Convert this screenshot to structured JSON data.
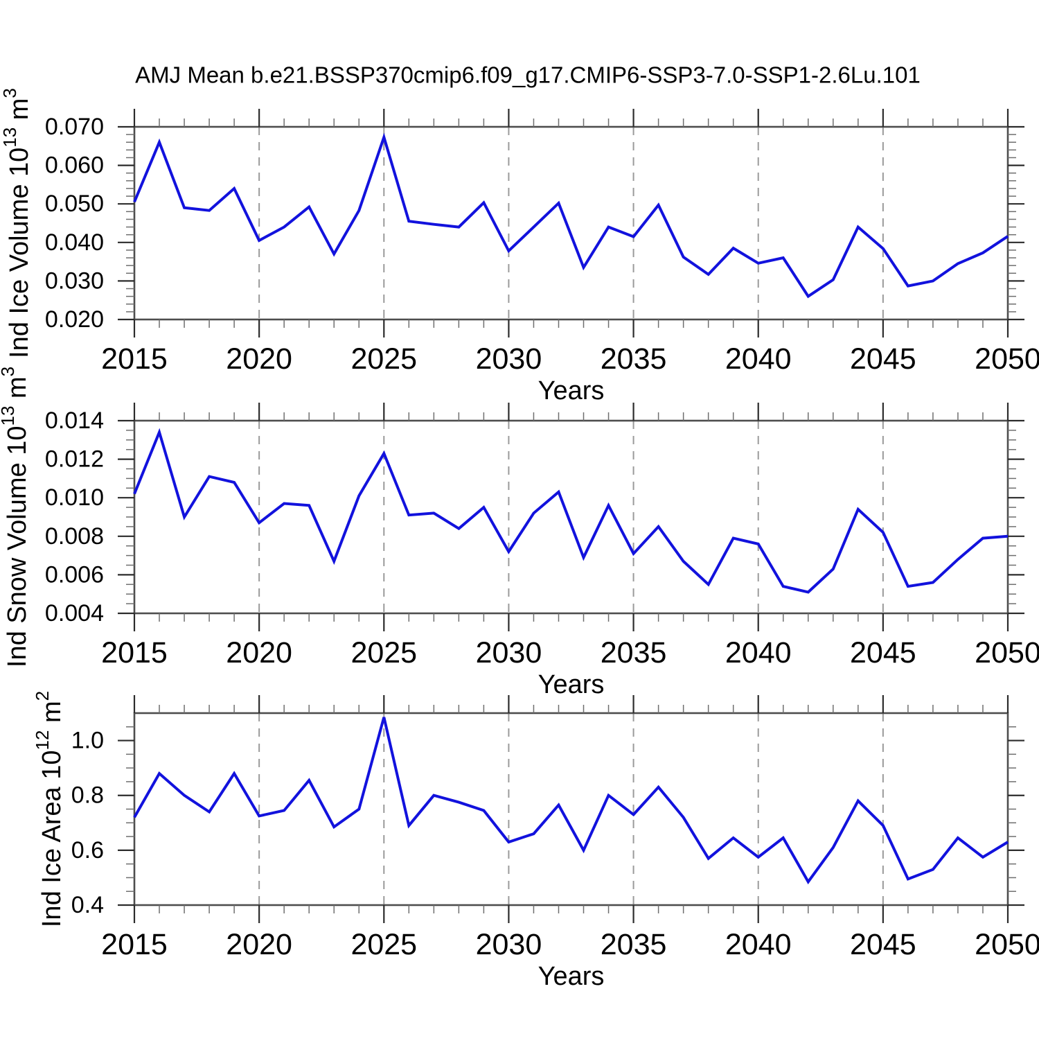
{
  "page": {
    "background": "#ffffff"
  },
  "chart": {
    "title": "AMJ Mean b.e21.BSSP370cmip6.f09_g17.CMIP6-SSP3-7.0-SSP1-2.6Lu.101",
    "line_color": "#1212dd",
    "frame_color": "#4d4d4d",
    "major_tick_color": "#2b2b2b",
    "minor_tick_color": "#6e6e6e",
    "grid_color": "#9a9a9a",
    "xlabel": "Years"
  },
  "chart_data": [
    {
      "type": "line",
      "title": "",
      "ylabel_segments": [
        {
          "text": "Ind Ice Volume 10"
        },
        {
          "text": "13",
          "sup": true
        },
        {
          "text": " m"
        },
        {
          "text": "3",
          "sup": true
        }
      ],
      "xlabel": "Years",
      "x": [
        2015,
        2016,
        2017,
        2018,
        2019,
        2020,
        2021,
        2022,
        2023,
        2024,
        2025,
        2026,
        2027,
        2028,
        2029,
        2030,
        2031,
        2032,
        2033,
        2034,
        2035,
        2036,
        2037,
        2038,
        2039,
        2040,
        2041,
        2042,
        2043,
        2044,
        2045,
        2046,
        2047,
        2048,
        2049,
        2050
      ],
      "values": [
        0.0505,
        0.066,
        0.049,
        0.0483,
        0.054,
        0.0405,
        0.044,
        0.0492,
        0.037,
        0.0483,
        0.0673,
        0.0455,
        0.0447,
        0.044,
        0.0503,
        0.0378,
        0.044,
        0.0502,
        0.0335,
        0.044,
        0.0415,
        0.0497,
        0.0362,
        0.0317,
        0.0385,
        0.0346,
        0.036,
        0.026,
        0.0303,
        0.044,
        0.0384,
        0.0287,
        0.03,
        0.0345,
        0.0373,
        0.0416
      ],
      "xlim": [
        2015,
        2050
      ],
      "ylim": [
        0.02,
        0.07
      ],
      "x_major_ticks": [
        2015,
        2020,
        2025,
        2030,
        2035,
        2040,
        2045,
        2050
      ],
      "x_grid_years": [
        2020,
        2025,
        2030,
        2035,
        2040,
        2045
      ],
      "y_major_ticks": [
        {
          "value": 0.02,
          "label": "0.020"
        },
        {
          "value": 0.03,
          "label": "0.030"
        },
        {
          "value": 0.04,
          "label": "0.040"
        },
        {
          "value": 0.05,
          "label": "0.050"
        },
        {
          "value": 0.06,
          "label": "0.060"
        },
        {
          "value": 0.07,
          "label": "0.070"
        }
      ],
      "y_minor_step": 0.002,
      "grid": "vertical-dashed",
      "legend": "none"
    },
    {
      "type": "line",
      "title": "",
      "ylabel_segments": [
        {
          "text": "Ind Snow Volume 10"
        },
        {
          "text": "13",
          "sup": true
        },
        {
          "text": " m"
        },
        {
          "text": "3",
          "sup": true
        }
      ],
      "xlabel": "Years",
      "x": [
        2015,
        2016,
        2017,
        2018,
        2019,
        2020,
        2021,
        2022,
        2023,
        2024,
        2025,
        2026,
        2027,
        2028,
        2029,
        2030,
        2031,
        2032,
        2033,
        2034,
        2035,
        2036,
        2037,
        2038,
        2039,
        2040,
        2041,
        2042,
        2043,
        2044,
        2045,
        2046,
        2047,
        2048,
        2049,
        2050
      ],
      "values": [
        0.0102,
        0.0134,
        0.009,
        0.0111,
        0.0108,
        0.0087,
        0.0097,
        0.0096,
        0.0067,
        0.0101,
        0.0123,
        0.0091,
        0.0092,
        0.0084,
        0.0095,
        0.0072,
        0.0092,
        0.0103,
        0.0069,
        0.0096,
        0.0071,
        0.0085,
        0.0067,
        0.0055,
        0.0079,
        0.0076,
        0.0054,
        0.0051,
        0.0063,
        0.0094,
        0.0082,
        0.0054,
        0.0056,
        0.0068,
        0.0079,
        0.008
      ],
      "xlim": [
        2015,
        2050
      ],
      "ylim": [
        0.004,
        0.014
      ],
      "x_major_ticks": [
        2015,
        2020,
        2025,
        2030,
        2035,
        2040,
        2045,
        2050
      ],
      "x_grid_years": [
        2020,
        2025,
        2030,
        2035,
        2040,
        2045
      ],
      "y_major_ticks": [
        {
          "value": 0.004,
          "label": "0.004"
        },
        {
          "value": 0.006,
          "label": "0.006"
        },
        {
          "value": 0.008,
          "label": "0.008"
        },
        {
          "value": 0.01,
          "label": "0.010"
        },
        {
          "value": 0.012,
          "label": "0.012"
        },
        {
          "value": 0.014,
          "label": "0.014"
        }
      ],
      "y_minor_step": 0.0005,
      "grid": "vertical-dashed",
      "legend": "none"
    },
    {
      "type": "line",
      "title": "",
      "ylabel_segments": [
        {
          "text": "Ind Ice Area 10"
        },
        {
          "text": "12",
          "sup": true
        },
        {
          "text": " m"
        },
        {
          "text": "2",
          "sup": true
        }
      ],
      "xlabel": "Years",
      "x": [
        2015,
        2016,
        2017,
        2018,
        2019,
        2020,
        2021,
        2022,
        2023,
        2024,
        2025,
        2026,
        2027,
        2028,
        2029,
        2030,
        2031,
        2032,
        2033,
        2034,
        2035,
        2036,
        2037,
        2038,
        2039,
        2040,
        2041,
        2042,
        2043,
        2044,
        2045,
        2046,
        2047,
        2048,
        2049,
        2050
      ],
      "values": [
        0.72,
        0.88,
        0.8,
        0.74,
        0.88,
        0.725,
        0.745,
        0.855,
        0.685,
        0.75,
        1.085,
        0.69,
        0.8,
        0.775,
        0.745,
        0.63,
        0.66,
        0.765,
        0.6,
        0.8,
        0.73,
        0.83,
        0.72,
        0.57,
        0.645,
        0.575,
        0.645,
        0.485,
        0.61,
        0.78,
        0.69,
        0.495,
        0.53,
        0.645,
        0.575,
        0.63
      ],
      "xlim": [
        2015,
        2050
      ],
      "ylim": [
        0.4,
        1.1
      ],
      "x_major_ticks": [
        2015,
        2020,
        2025,
        2030,
        2035,
        2040,
        2045,
        2050
      ],
      "x_grid_years": [
        2020,
        2025,
        2030,
        2035,
        2040,
        2045
      ],
      "y_major_ticks": [
        {
          "value": 0.4,
          "label": "0.4"
        },
        {
          "value": 0.6,
          "label": "0.6"
        },
        {
          "value": 0.8,
          "label": "0.8"
        },
        {
          "value": 1.0,
          "label": "1.0"
        }
      ],
      "y_minor_step": 0.05,
      "grid": "vertical-dashed",
      "legend": "none"
    }
  ]
}
